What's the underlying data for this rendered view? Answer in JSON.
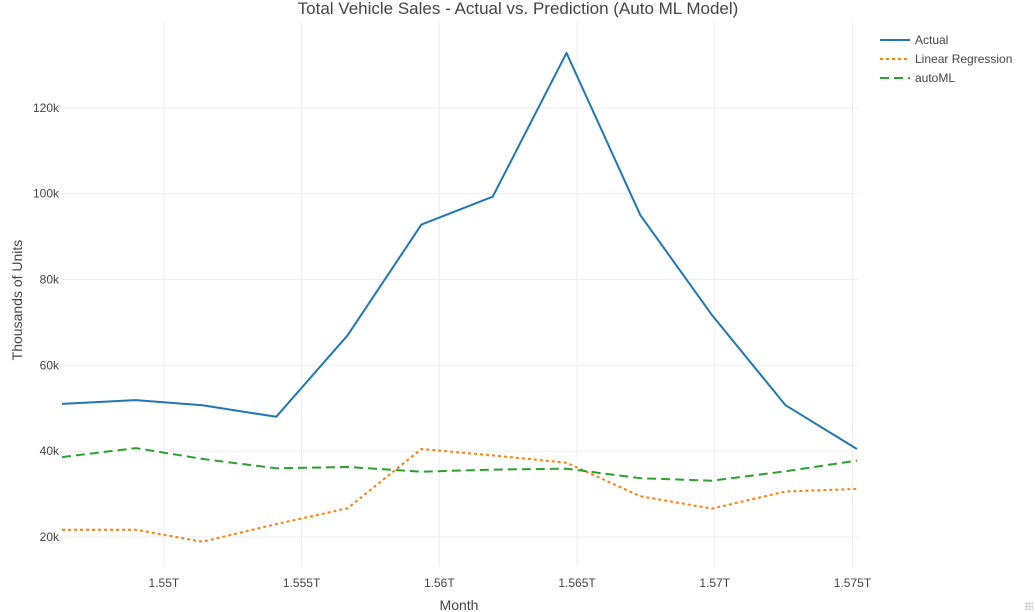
{
  "chart_data": {
    "type": "line",
    "title": "Total Vehicle Sales - Actual vs. Prediction (Auto ML Model)",
    "xlabel": "Month",
    "ylabel": "Thousands of Units",
    "x": [
      1546300800000,
      1548979200000,
      1551398400000,
      1554076800000,
      1556668800000,
      1559347200000,
      1561939200000,
      1564617600000,
      1567296000000,
      1569888000000,
      1572566400000,
      1575158400000
    ],
    "x_tick_values": [
      1550000000000,
      1555000000000,
      1560000000000,
      1565000000000,
      1570000000000,
      1575000000000
    ],
    "x_tick_labels": [
      "1.55T",
      "1.555T",
      "1.56T",
      "1.565T",
      "1.57T",
      "1.575T"
    ],
    "xlim": [
      1546300800000,
      1575200000000
    ],
    "y_tick_values": [
      20000,
      40000,
      60000,
      80000,
      100000,
      120000
    ],
    "y_tick_labels": [
      "20k",
      "40k",
      "60k",
      "80k",
      "100k",
      "120k"
    ],
    "ylim": [
      13000,
      140000
    ],
    "grid": true,
    "legend_position": "top-right",
    "series": [
      {
        "name": "Actual",
        "color": "#1f77b4",
        "dash": "solid",
        "values": [
          51000,
          51900,
          50700,
          48000,
          67000,
          92800,
          99300,
          132800,
          95000,
          71800,
          50700,
          40500
        ]
      },
      {
        "name": "Linear Regression",
        "color": "#ff7f0e",
        "dash": "dot",
        "values": [
          21700,
          21700,
          18900,
          23000,
          26700,
          40500,
          39000,
          37300,
          29500,
          26600,
          30600,
          31200
        ]
      },
      {
        "name": "autoML",
        "color": "#2ca02c",
        "dash": "dash",
        "values": [
          38600,
          40700,
          38200,
          36000,
          36300,
          35200,
          35700,
          35900,
          33700,
          33100,
          35300,
          37800
        ]
      }
    ]
  }
}
